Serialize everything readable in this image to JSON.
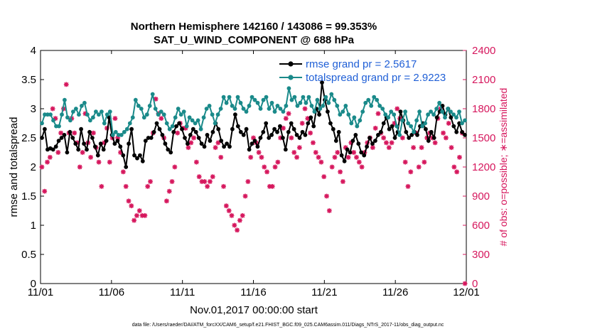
{
  "chart_data": {
    "type": "line",
    "title_line1": "Northern Hemisphere 142160 / 143086 = 99.353%",
    "title_line2": "SAT_U_WIND_COMPONENT @ 688 hPa",
    "xlabel": "Nov.01,2017 00:00:00 start",
    "ylabel_left": "rmse and totalspread",
    "ylabel_right": "# of obs: o=possible; ∗=assimilated",
    "footnote": "data file: /Users/raeder/DAI/ATM_forcXX/CAM6_setup/f.e21.FHIST_BGC.f09_025.CAM6assim.011/Diags_NTrS_2017-11/obs_diag_output.nc",
    "x_ticks": [
      "11/01",
      "11/06",
      "11/11",
      "11/16",
      "11/21",
      "11/26",
      "12/01"
    ],
    "x_tick_days": [
      0,
      5,
      10,
      15,
      20,
      25,
      30
    ],
    "xlim": [
      0,
      30
    ],
    "ylim_left": [
      0,
      4
    ],
    "y_ticks_left": [
      "0",
      "0.5",
      "1",
      "1.5",
      "2",
      "2.5",
      "3",
      "3.5",
      "4"
    ],
    "ylim_right": [
      0,
      2400
    ],
    "y_ticks_right": [
      "0",
      "300",
      "600",
      "900",
      "1200",
      "1500",
      "1800",
      "2100",
      "2400"
    ],
    "colors": {
      "rmse": "#000000",
      "spread": "#1a8a8a",
      "obs": "#d6175d",
      "legend_text": "#1f5fd6"
    },
    "series": [
      {
        "name": "rmse grand pr = 2.5617",
        "key": "rmse",
        "axis": "left",
        "values": [
          2.5,
          2.65,
          2.3,
          2.32,
          2.3,
          2.35,
          2.45,
          2.5,
          2.55,
          2.25,
          2.6,
          2.5,
          2.4,
          2.3,
          2.65,
          2.4,
          2.3,
          2.6,
          2.5,
          2.35,
          2.2,
          2.4,
          2.3,
          2.45,
          2.85,
          2.55,
          2.4,
          2.45,
          2.35,
          2.2,
          2.0,
          2.4,
          2.65,
          2.2,
          2.15,
          2.2,
          2.1,
          2.45,
          2.5,
          2.5,
          2.6,
          2.75,
          2.65,
          2.55,
          2.4,
          2.3,
          2.25,
          2.6,
          2.7,
          2.75,
          2.65,
          2.5,
          2.4,
          2.55,
          2.65,
          2.6,
          2.5,
          2.4,
          2.35,
          2.55,
          2.45,
          2.6,
          2.75,
          2.65,
          2.45,
          2.35,
          2.4,
          2.35,
          2.65,
          2.9,
          2.7,
          2.6,
          2.55,
          2.65,
          2.3,
          2.4,
          2.45,
          2.35,
          2.5,
          2.6,
          2.75,
          2.5,
          2.55,
          2.65,
          2.6,
          2.7,
          2.5,
          2.3,
          2.6,
          2.75,
          2.65,
          2.55,
          2.5,
          2.6,
          2.55,
          2.75,
          2.85,
          2.7,
          3.0,
          2.9,
          3.45,
          3.15,
          2.95,
          2.75,
          2.65,
          2.45,
          2.6,
          2.2,
          2.1,
          2.3,
          2.25,
          2.45,
          2.55,
          2.4,
          2.25,
          2.2,
          2.35,
          2.5,
          2.4,
          2.45,
          2.55,
          2.6,
          2.75,
          2.85,
          2.65,
          2.7,
          2.5,
          2.6,
          2.95,
          2.8,
          2.6,
          2.5,
          2.55,
          2.6,
          2.55,
          2.7,
          2.75,
          2.65,
          2.45,
          2.6,
          2.5,
          2.85,
          2.95,
          3.05,
          2.9,
          3.0,
          2.85,
          2.7,
          2.6,
          2.75,
          2.6,
          2.55
        ]
      },
      {
        "name": "totalspread grand pr = 2.9223",
        "key": "spread",
        "axis": "left",
        "values": [
          2.75,
          2.9,
          2.9,
          2.9,
          2.8,
          2.7,
          2.7,
          2.9,
          3.15,
          2.85,
          2.8,
          2.95,
          3.0,
          2.9,
          3.05,
          3.1,
          2.9,
          2.8,
          2.85,
          2.95,
          2.9,
          2.95,
          2.75,
          2.9,
          2.95,
          2.55,
          2.6,
          2.55,
          2.55,
          2.6,
          2.65,
          2.75,
          2.85,
          3.15,
          3.05,
          3.0,
          2.85,
          2.9,
          3.05,
          3.25,
          3.0,
          2.9,
          2.95,
          2.9,
          2.75,
          2.65,
          2.7,
          2.85,
          3.0,
          2.9,
          2.95,
          2.7,
          2.85,
          2.8,
          2.75,
          2.8,
          2.65,
          2.85,
          3.0,
          3.05,
          2.9,
          2.75,
          2.9,
          3.0,
          3.2,
          3.1,
          3.2,
          3.05,
          3.0,
          3.2,
          3.1,
          3.0,
          2.95,
          3.05,
          3.2,
          3.15,
          3.1,
          3.0,
          3.15,
          3.2,
          3.0,
          3.1,
          2.95,
          3.05,
          3.0,
          2.95,
          3.05,
          3.35,
          3.15,
          3.2,
          3.05,
          3.1,
          3.2,
          3.1,
          3.2,
          3.05,
          2.95,
          3.15,
          3.0,
          3.05,
          3.2,
          3.1,
          3.25,
          3.15,
          3.05,
          2.9,
          2.95,
          3.05,
          2.9,
          2.75,
          2.85,
          2.7,
          2.8,
          2.95,
          3.1,
          3.15,
          3.05,
          3.2,
          3.15,
          3.05,
          3.0,
          2.9,
          2.85,
          2.95,
          2.9,
          2.7,
          2.55,
          2.8,
          2.95,
          2.75,
          2.7,
          2.6,
          2.8,
          2.95,
          2.7,
          2.75,
          2.9,
          2.95,
          2.9,
          3.0,
          3.1,
          2.95,
          2.85,
          3.0,
          2.95,
          2.9,
          2.85,
          2.95,
          2.75,
          2.8
        ]
      }
    ],
    "obs_assimilated": {
      "axis": "right",
      "label": "assimilated",
      "values": [
        1200,
        950,
        1250,
        1300,
        1800,
        1700,
        1350,
        1550,
        1800,
        2050,
        1550,
        1700,
        1550,
        1450,
        1200,
        1350,
        1750,
        1450,
        1300,
        1550,
        1400,
        1250,
        1000,
        1450,
        1600,
        1250,
        1500,
        1700,
        1500,
        1350,
        1150,
        1000,
        850,
        800,
        650,
        700,
        750,
        700,
        700,
        1000,
        1050,
        1550,
        1900,
        1750,
        1700,
        1500,
        850,
        950,
        1050,
        1200,
        1550,
        1650,
        1600,
        1600,
        1400,
        1450,
        1500,
        1250,
        1100,
        1050,
        1050,
        1000,
        1050,
        1100,
        1400,
        1450,
        1300,
        1000,
        800,
        750,
        700,
        600,
        550,
        650,
        700,
        900,
        1050,
        1300,
        1500,
        1450,
        1350,
        1300,
        1200,
        1150,
        1000,
        1000,
        1200,
        1250,
        1500,
        1600,
        1700,
        1750,
        1500,
        1350,
        1300,
        1400,
        1650,
        1800,
        1700,
        1550,
        1450,
        1350,
        1300,
        1250,
        1100,
        900,
        750,
        1200,
        1300,
        1350,
        1150,
        1050,
        1400,
        1300,
        1450,
        1350,
        1300,
        1250,
        1200,
        1350,
        1450,
        1500,
        1400,
        1600,
        1750,
        1550,
        1500,
        1450,
        1400,
        1450,
        1650,
        1800,
        1700,
        1500,
        1250,
        1000,
        1150,
        1400,
        1550,
        1200,
        1400,
        1250,
        1500,
        1550,
        1500,
        1450,
        1700,
        1800,
        1550,
        1500,
        1650,
        1400,
        1200,
        1150,
        1300,
        1550,
        0
      ]
    }
  }
}
